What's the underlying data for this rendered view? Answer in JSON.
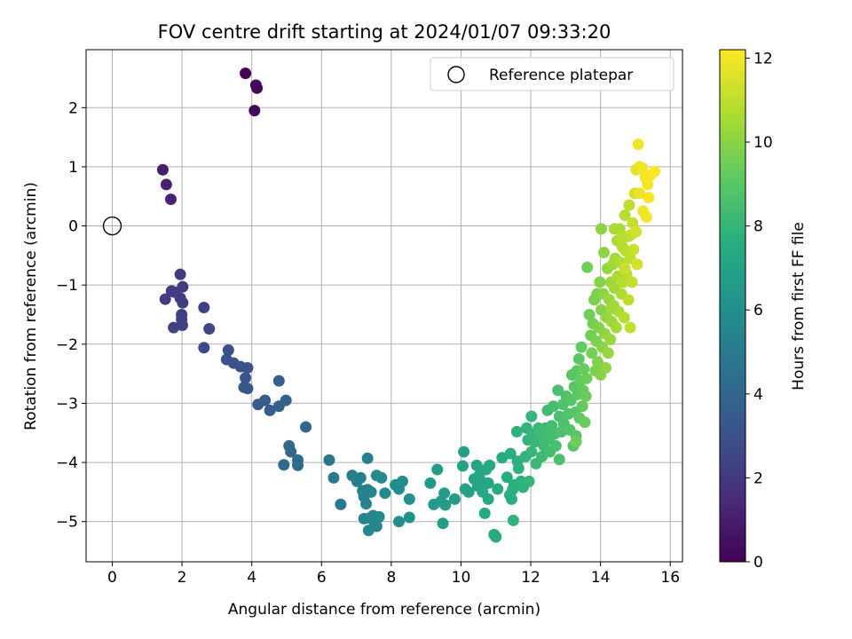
{
  "chart_data": {
    "type": "scatter",
    "title": "FOV centre drift starting at 2024/01/07 09:33:20",
    "xlabel": "Angular distance from reference (arcmin)",
    "ylabel": "Rotation from reference (arcmin)",
    "xlim": [
      -0.75,
      16.35
    ],
    "ylim": [
      -5.68,
      2.98
    ],
    "x_ticks": [
      0,
      2,
      4,
      6,
      8,
      10,
      12,
      14,
      16
    ],
    "y_ticks": [
      2,
      1,
      0,
      -1,
      -2,
      -3,
      -4,
      -5
    ],
    "x_tick_labels": [
      "0",
      "2",
      "4",
      "6",
      "8",
      "10",
      "12",
      "14",
      "16"
    ],
    "y_tick_labels": [
      "2",
      "1",
      "0",
      "−1",
      "−2",
      "−3",
      "−4",
      "−5"
    ],
    "grid": true,
    "legend": {
      "position": "top-right",
      "entries": [
        "Reference platepar"
      ]
    },
    "reference_point": {
      "name": "Reference platepar",
      "x": 0,
      "y": 0
    },
    "colorbar": {
      "label": "Hours from first FF file",
      "colormap": "viridis",
      "range": [
        0,
        12.2
      ],
      "ticks": [
        0,
        2,
        4,
        6,
        8,
        10,
        12
      ],
      "tick_labels": [
        "0",
        "2",
        "4",
        "6",
        "8",
        "10",
        "12"
      ]
    },
    "series_fields": [
      "x",
      "y",
      "hours"
    ],
    "points": [
      [
        3.82,
        2.58,
        0.1
      ],
      [
        4.12,
        2.38,
        0.15
      ],
      [
        4.15,
        2.33,
        0.2
      ],
      [
        4.08,
        1.95,
        0.25
      ],
      [
        1.45,
        0.95,
        1.0
      ],
      [
        1.55,
        0.7,
        1.1
      ],
      [
        1.68,
        0.45,
        1.2
      ],
      [
        1.95,
        -0.82,
        2.1
      ],
      [
        2.02,
        -1.03,
        2.1
      ],
      [
        1.7,
        -1.1,
        2.1
      ],
      [
        1.78,
        -1.12,
        2.15
      ],
      [
        1.52,
        -1.24,
        2.15
      ],
      [
        1.95,
        -1.22,
        2.2
      ],
      [
        2.02,
        -1.3,
        2.2
      ],
      [
        1.99,
        -1.5,
        2.25
      ],
      [
        1.99,
        -1.58,
        2.25
      ],
      [
        1.76,
        -1.72,
        2.3
      ],
      [
        2.01,
        -1.68,
        2.3
      ],
      [
        2.63,
        -1.38,
        2.4
      ],
      [
        2.78,
        -1.74,
        2.5
      ],
      [
        2.63,
        -2.06,
        2.6
      ],
      [
        3.33,
        -2.1,
        3.0
      ],
      [
        3.28,
        -2.26,
        3.0
      ],
      [
        3.48,
        -2.32,
        3.1
      ],
      [
        3.68,
        -2.38,
        3.1
      ],
      [
        3.88,
        -2.4,
        3.15
      ],
      [
        3.82,
        -2.57,
        3.2
      ],
      [
        3.78,
        -2.73,
        3.25
      ],
      [
        3.88,
        -2.75,
        3.3
      ],
      [
        4.18,
        -3.02,
        3.5
      ],
      [
        4.38,
        -2.95,
        3.55
      ],
      [
        4.52,
        -3.12,
        3.6
      ],
      [
        4.78,
        -2.62,
        3.65
      ],
      [
        4.78,
        -3.05,
        3.7
      ],
      [
        4.98,
        -2.95,
        3.8
      ],
      [
        5.55,
        -3.4,
        4.0
      ],
      [
        5.07,
        -3.72,
        4.1
      ],
      [
        5.12,
        -3.82,
        4.15
      ],
      [
        5.32,
        -3.96,
        4.2
      ],
      [
        4.92,
        -4.04,
        4.2
      ],
      [
        5.32,
        -4.05,
        4.25
      ],
      [
        6.22,
        -3.96,
        4.7
      ],
      [
        6.35,
        -4.26,
        4.8
      ],
      [
        6.55,
        -4.71,
        4.9
      ],
      [
        6.88,
        -4.22,
        5.1
      ],
      [
        7.02,
        -4.32,
        5.15
      ],
      [
        7.12,
        -4.26,
        5.2
      ],
      [
        7.32,
        -3.93,
        5.25
      ],
      [
        7.18,
        -4.48,
        5.3
      ],
      [
        7.32,
        -4.46,
        5.3
      ],
      [
        7.22,
        -4.58,
        5.35
      ],
      [
        7.42,
        -4.5,
        5.4
      ],
      [
        7.28,
        -4.7,
        5.4
      ],
      [
        7.22,
        -4.95,
        5.45
      ],
      [
        7.38,
        -4.94,
        5.5
      ],
      [
        7.48,
        -4.9,
        5.5
      ],
      [
        7.52,
        -5.02,
        5.55
      ],
      [
        7.58,
        -5.08,
        5.6
      ],
      [
        7.35,
        -5.15,
        5.6
      ],
      [
        7.65,
        -4.92,
        5.65
      ],
      [
        7.58,
        -4.22,
        5.7
      ],
      [
        7.72,
        -4.26,
        5.75
      ],
      [
        7.82,
        -4.52,
        5.8
      ],
      [
        8.12,
        -4.38,
        5.9
      ],
      [
        8.22,
        -4.45,
        5.95
      ],
      [
        8.32,
        -4.32,
        6.0
      ],
      [
        8.22,
        -5.0,
        6.0
      ],
      [
        8.52,
        -4.62,
        6.05
      ],
      [
        8.52,
        -4.93,
        6.1
      ],
      [
        9.12,
        -4.35,
        6.5
      ],
      [
        9.22,
        -4.71,
        6.55
      ],
      [
        9.42,
        -4.66,
        6.6
      ],
      [
        9.32,
        -4.12,
        6.6
      ],
      [
        9.52,
        -4.52,
        6.65
      ],
      [
        9.55,
        -4.72,
        6.7
      ],
      [
        9.48,
        -5.03,
        6.7
      ],
      [
        9.82,
        -4.62,
        6.8
      ],
      [
        10.08,
        -3.82,
        6.9
      ],
      [
        10.05,
        -4.06,
        6.95
      ],
      [
        10.12,
        -4.45,
        7.0
      ],
      [
        10.22,
        -4.5,
        7.0
      ],
      [
        10.38,
        -4.28,
        7.05
      ],
      [
        10.45,
        -4.05,
        7.1
      ],
      [
        10.48,
        -4.4,
        7.1
      ],
      [
        10.52,
        -4.22,
        7.15
      ],
      [
        10.58,
        -4.32,
        7.15
      ],
      [
        10.62,
        -4.5,
        7.2
      ],
      [
        10.72,
        -4.12,
        7.2
      ],
      [
        10.78,
        -4.35,
        7.25
      ],
      [
        10.78,
        -4.62,
        7.25
      ],
      [
        10.82,
        -4.05,
        7.3
      ],
      [
        10.68,
        -4.86,
        7.3
      ],
      [
        10.95,
        -5.22,
        7.4
      ],
      [
        11.0,
        -5.26,
        7.4
      ],
      [
        11.05,
        -4.45,
        7.45
      ],
      [
        11.18,
        -3.92,
        7.5
      ],
      [
        11.32,
        -4.25,
        7.55
      ],
      [
        11.42,
        -3.85,
        7.6
      ],
      [
        11.4,
        -4.55,
        7.6
      ],
      [
        11.45,
        -4.62,
        7.65
      ],
      [
        11.48,
        -4.46,
        7.65
      ],
      [
        11.52,
        -4.38,
        7.7
      ],
      [
        11.62,
        -3.98,
        7.7
      ],
      [
        11.65,
        -4.1,
        7.75
      ],
      [
        11.72,
        -4.32,
        7.75
      ],
      [
        11.78,
        -4.42,
        7.8
      ],
      [
        11.6,
        -3.48,
        7.8
      ],
      [
        11.5,
        -4.98,
        7.85
      ],
      [
        11.88,
        -3.42,
        7.9
      ],
      [
        11.92,
        -3.62,
        7.95
      ],
      [
        11.85,
        -3.9,
        7.95
      ],
      [
        11.95,
        -4.32,
        8.0
      ],
      [
        12.02,
        -3.22,
        8.0
      ],
      [
        12.05,
        -3.52,
        8.05
      ],
      [
        12.02,
        -3.82,
        8.1
      ],
      [
        12.12,
        -3.65,
        8.1
      ],
      [
        12.15,
        -4.02,
        8.15
      ],
      [
        12.22,
        -3.42,
        8.2
      ],
      [
        12.28,
        -3.55,
        8.2
      ],
      [
        12.32,
        -3.9,
        8.25
      ],
      [
        12.38,
        -3.72,
        8.3
      ],
      [
        12.42,
        -3.42,
        8.3
      ],
      [
        12.48,
        -3.12,
        8.35
      ],
      [
        12.52,
        -3.6,
        8.4
      ],
      [
        12.55,
        -3.82,
        8.4
      ],
      [
        12.6,
        -3.38,
        8.45
      ],
      [
        12.65,
        -3.05,
        8.5
      ],
      [
        12.68,
        -3.52,
        8.5
      ],
      [
        12.72,
        -3.72,
        8.55
      ],
      [
        12.78,
        -2.78,
        8.6
      ],
      [
        12.82,
        -3.22,
        8.6
      ],
      [
        12.88,
        -3.48,
        8.65
      ],
      [
        12.82,
        -3.95,
        8.65
      ],
      [
        12.92,
        -3.02,
        8.7
      ],
      [
        12.95,
        -3.35,
        8.7
      ],
      [
        13.02,
        -2.88,
        8.75
      ],
      [
        13.08,
        -3.18,
        8.8
      ],
      [
        13.12,
        -3.45,
        8.8
      ],
      [
        13.15,
        -2.95,
        8.85
      ],
      [
        13.18,
        -2.52,
        8.9
      ],
      [
        13.22,
        -3.72,
        8.9
      ],
      [
        13.25,
        -2.72,
        8.95
      ],
      [
        13.28,
        -3.15,
        9.0
      ],
      [
        13.3,
        -3.55,
        9.0
      ],
      [
        13.32,
        -2.45,
        9.05
      ],
      [
        13.35,
        -2.85,
        9.1
      ],
      [
        13.38,
        -2.25,
        9.1
      ],
      [
        13.4,
        -3.25,
        9.15
      ],
      [
        13.42,
        -2.62,
        9.2
      ],
      [
        13.45,
        -2.05,
        9.2
      ],
      [
        13.48,
        -3.05,
        9.25
      ],
      [
        13.5,
        -2.78,
        9.3
      ],
      [
        13.52,
        -2.42,
        9.3
      ],
      [
        13.55,
        -3.32,
        9.35
      ],
      [
        13.58,
        -2.88,
        9.4
      ],
      [
        13.6,
        -2.58,
        9.4
      ],
      [
        13.3,
        -3.65,
        9.45
      ],
      [
        13.62,
        -0.7,
        9.5
      ],
      [
        13.68,
        -1.5,
        9.5
      ],
      [
        13.72,
        -1.85,
        9.55
      ],
      [
        13.75,
        -2.15,
        9.6
      ],
      [
        13.78,
        -1.65,
        9.6
      ],
      [
        13.82,
        -1.25,
        9.65
      ],
      [
        13.85,
        -2.45,
        9.7
      ],
      [
        13.88,
        -1.95,
        9.7
      ],
      [
        13.9,
        -1.15,
        9.75
      ],
      [
        13.92,
        -2.3,
        9.8
      ],
      [
        13.95,
        -1.72,
        9.8
      ],
      [
        13.98,
        -0.95,
        9.85
      ],
      [
        14.0,
        -2.52,
        9.9
      ],
      [
        14.02,
        -1.42,
        9.9
      ],
      [
        14.05,
        -2.05,
        9.95
      ],
      [
        14.02,
        -0.05,
        10.0
      ],
      [
        14.08,
        -1.15,
        10.0
      ],
      [
        14.1,
        -0.45,
        10.05
      ],
      [
        14.12,
        -1.82,
        10.1
      ],
      [
        14.15,
        -2.4,
        10.1
      ],
      [
        14.18,
        -1.55,
        10.15
      ],
      [
        14.2,
        -0.72,
        10.2
      ],
      [
        14.22,
        -2.15,
        10.2
      ],
      [
        14.25,
        -1.25,
        10.25
      ],
      [
        14.28,
        -1.92,
        10.3
      ],
      [
        14.3,
        -0.95,
        10.3
      ],
      [
        14.32,
        -1.62,
        10.35
      ],
      [
        14.35,
        -0.65,
        10.4
      ],
      [
        14.38,
        -1.35,
        10.4
      ],
      [
        14.4,
        -1.05,
        10.45
      ],
      [
        14.42,
        -0.55,
        10.5
      ],
      [
        14.45,
        -1.72,
        10.5
      ],
      [
        14.48,
        -0.25,
        10.55
      ],
      [
        14.5,
        -0.85,
        10.6
      ],
      [
        14.52,
        -1.45,
        10.6
      ],
      [
        14.55,
        -0.05,
        10.65
      ],
      [
        14.58,
        -0.62,
        10.7
      ],
      [
        14.6,
        -1.15,
        10.7
      ],
      [
        14.62,
        -0.35,
        10.75
      ],
      [
        14.65,
        -0.95,
        10.8
      ],
      [
        14.68,
        -1.55,
        10.8
      ],
      [
        14.7,
        0.18,
        10.85
      ],
      [
        14.72,
        -0.42,
        10.9
      ],
      [
        14.75,
        -0.82,
        10.9
      ],
      [
        14.78,
        -0.18,
        10.95
      ],
      [
        14.8,
        -1.25,
        11.0
      ],
      [
        14.82,
        0.35,
        11.0
      ],
      [
        14.85,
        -0.55,
        11.05
      ],
      [
        14.88,
        -0.15,
        11.1
      ],
      [
        14.9,
        -0.95,
        11.1
      ],
      [
        14.92,
        0.05,
        11.15
      ],
      [
        14.95,
        -0.4,
        11.2
      ],
      [
        14.98,
        0.55,
        11.3
      ],
      [
        15.02,
        -0.1,
        11.4
      ],
      [
        15.05,
        -0.65,
        11.4
      ],
      [
        14.85,
        -1.72,
        11.1
      ],
      [
        14.4,
        -0.05,
        10.6
      ],
      [
        14.7,
        -0.72,
        11.2
      ],
      [
        14.3,
        -1.4,
        10.4
      ],
      [
        14.6,
        -0.2,
        10.9
      ],
      [
        15.02,
        0.95,
        11.7
      ],
      [
        15.12,
        1.0,
        11.8
      ],
      [
        15.08,
        1.38,
        11.9
      ],
      [
        15.2,
        0.98,
        11.9
      ],
      [
        15.28,
        0.82,
        12.0
      ],
      [
        15.35,
        0.7,
        12.0
      ],
      [
        15.42,
        0.85,
        12.1
      ],
      [
        15.55,
        0.92,
        12.2
      ],
      [
        15.38,
        0.48,
        12.1
      ],
      [
        15.22,
        0.25,
        11.95
      ],
      [
        15.32,
        0.15,
        12.0
      ],
      [
        15.12,
        0.55,
        11.85
      ]
    ]
  }
}
